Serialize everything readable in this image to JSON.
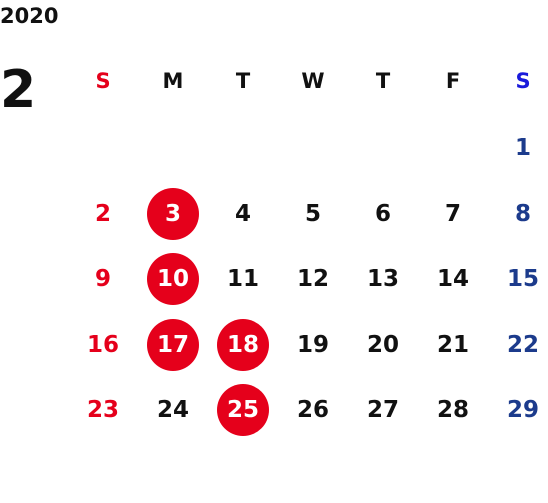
{
  "calendar": {
    "year": "2020",
    "month": "2",
    "weekday_headers": [
      "S",
      "M",
      "T",
      "W",
      "T",
      "F",
      "S"
    ],
    "colors": {
      "sunday": "#e5001b",
      "saturday": "#1c3b8c",
      "weekday": "#111111",
      "holiday_circle": "#e5001b"
    },
    "weeks": [
      [
        "",
        "",
        "",
        "",
        "",
        "",
        "1"
      ],
      [
        "2",
        "3",
        "4",
        "5",
        "6",
        "7",
        "8"
      ],
      [
        "9",
        "10",
        "11",
        "12",
        "13",
        "14",
        "15"
      ],
      [
        "16",
        "17",
        "18",
        "19",
        "20",
        "21",
        "22"
      ],
      [
        "23",
        "24",
        "25",
        "26",
        "27",
        "28",
        "29"
      ]
    ],
    "highlighted_days": [
      "3",
      "10",
      "17",
      "18",
      "25"
    ]
  }
}
